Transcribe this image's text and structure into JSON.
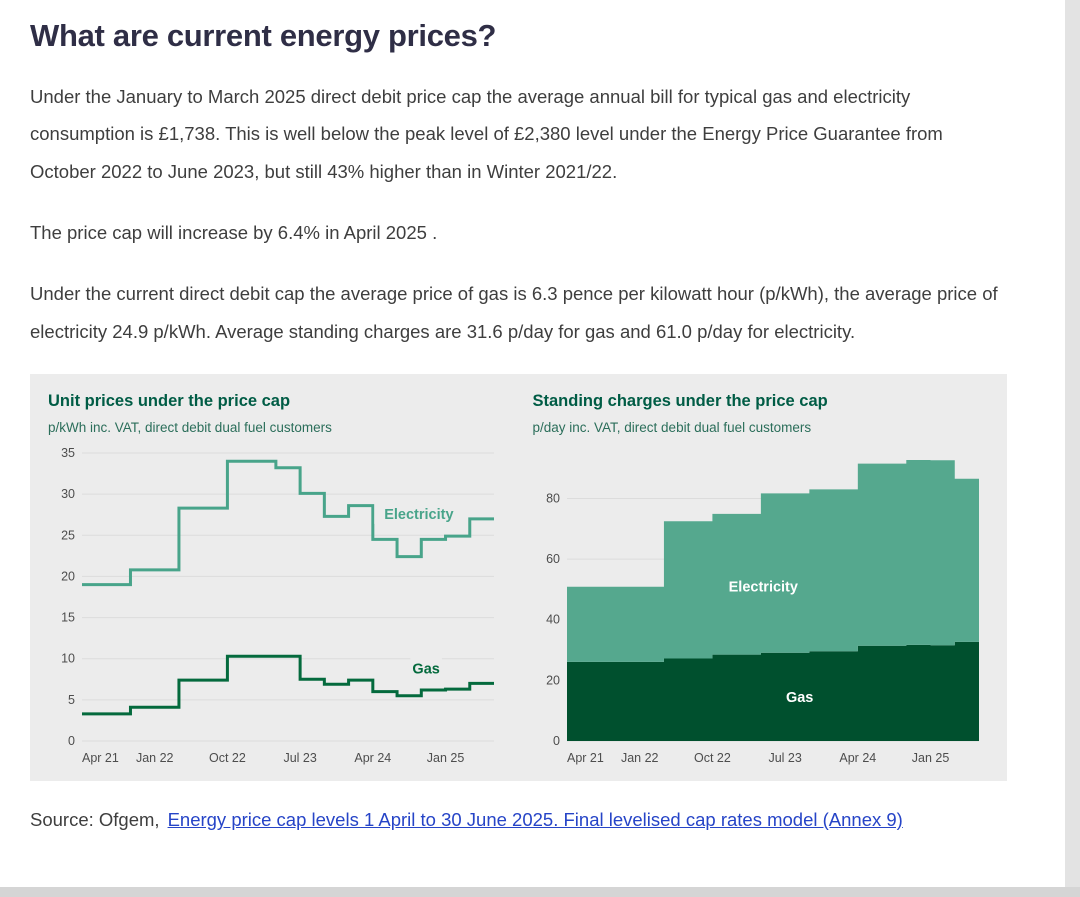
{
  "page": {
    "heading": "What are current energy prices?",
    "paragraphs": [
      "Under the January to March 2025 direct debit price cap the average annual bill for typical gas and electricity consumption is £1,738. This is well below the peak level of £2,380 level under the Energy Price Guarantee from October 2022 to June 2023, but still 43% higher than in Winter 2021/22.",
      "The price cap will increase by 6.4% in April 2025 .",
      "Under the current direct debit cap the average price of gas is 6.3 pence per kilowatt hour (p/kWh), the average price of electricity 24.9 p/kWh. Average standing charges are 31.6 p/day for gas and 61.0 p/day for electricity."
    ],
    "source": {
      "prefix": "Source: Ofgem,",
      "link_text": "Energy price cap levels 1 April to 30 June 2025. Final levelised cap rates model (Annex 9)"
    }
  },
  "colors": {
    "heading": "#2f2e46",
    "body_text": "#3e3e3e",
    "panel_bg": "#ececec",
    "chart_title_green": "#005c45",
    "chart_subtitle_green": "#2b6e5a",
    "electricity_line": "#48a48a",
    "gas_line": "#046a3d",
    "electricity_area": "#55a88e",
    "gas_area": "#00502e",
    "link_blue": "#2644c7",
    "tick_text": "#4d4d4d",
    "gridline": "#dcdcdc"
  },
  "chart_data": [
    {
      "type": "line-step",
      "title": "Unit prices under the price cap",
      "subtitle": "p/kWh inc. VAT, direct debit dual fuel customers",
      "unit": "p/kWh",
      "x": [
        "Apr 21",
        "Jul 21",
        "Oct 21",
        "Jan 22",
        "Apr 22",
        "Jul 22",
        "Oct 22",
        "Jan 23",
        "Apr 23",
        "Jul 23",
        "Oct 23",
        "Jan 24",
        "Apr 24",
        "Jul 24",
        "Oct 24",
        "Jan 25",
        "Apr 25"
      ],
      "x_ticks": [
        {
          "i": 0,
          "label": "Apr 21"
        },
        {
          "i": 3,
          "label": "Jan 22"
        },
        {
          "i": 6,
          "label": "Oct 22"
        },
        {
          "i": 9,
          "label": "Jul 23"
        },
        {
          "i": 12,
          "label": "Apr 24"
        },
        {
          "i": 15,
          "label": "Jan 25"
        }
      ],
      "ylim": [
        0,
        35
      ],
      "yticks": [
        0,
        5,
        10,
        15,
        20,
        25,
        30,
        35
      ],
      "grid": true,
      "legend": "inline-labels",
      "series": [
        {
          "name": "Electricity",
          "color": "#48a48a",
          "values": [
            19,
            19,
            20.8,
            20.8,
            28.3,
            28.3,
            34,
            34,
            33.2,
            30.1,
            27.3,
            28.6,
            24.5,
            22.4,
            24.5,
            24.9,
            27
          ]
        },
        {
          "name": "Gas",
          "color": "#046a3d",
          "values": [
            3.3,
            3.3,
            4.1,
            4.1,
            7.4,
            7.4,
            10.3,
            10.3,
            10.3,
            7.5,
            6.9,
            7.4,
            6,
            5.5,
            6.2,
            6.3,
            7
          ]
        }
      ],
      "annotations": [
        {
          "text": "Electricity",
          "x_index": 13.9,
          "y_value": 27.6,
          "color": "#48a48a",
          "bg": true
        },
        {
          "text": "Gas",
          "x_index": 14.2,
          "y_value": 8.8,
          "color": "#046a3d",
          "bg": true
        }
      ]
    },
    {
      "type": "stacked-area-step",
      "title": "Standing charges under the price cap",
      "subtitle": "p/day inc. VAT, direct debit dual fuel customers",
      "unit": "p/day",
      "x": [
        "Apr 21",
        "Jul 21",
        "Oct 21",
        "Jan 22",
        "Apr 22",
        "Jul 22",
        "Oct 22",
        "Jan 23",
        "Apr 23",
        "Jul 23",
        "Oct 23",
        "Jan 24",
        "Apr 24",
        "Jul 24",
        "Oct 24",
        "Jan 25",
        "Apr 25"
      ],
      "x_ticks": [
        {
          "i": 0,
          "label": "Apr 21"
        },
        {
          "i": 3,
          "label": "Jan 22"
        },
        {
          "i": 6,
          "label": "Oct 22"
        },
        {
          "i": 9,
          "label": "Jul 23"
        },
        {
          "i": 12,
          "label": "Apr 24"
        },
        {
          "i": 15,
          "label": "Jan 25"
        }
      ],
      "ylim": [
        0,
        95
      ],
      "yticks": [
        0,
        20,
        40,
        60,
        80
      ],
      "grid": true,
      "legend": "inline-labels",
      "series": [
        {
          "name": "Gas",
          "color": "#00502e",
          "values": [
            26.1,
            26.1,
            26.1,
            26.1,
            27.2,
            27.2,
            28.5,
            28.5,
            29.1,
            29.1,
            29.6,
            29.6,
            31.4,
            31.4,
            31.7,
            31.6,
            32.7
          ]
        },
        {
          "name": "Electricity",
          "color": "#55a88e",
          "values": [
            24.8,
            24.8,
            24.8,
            24.8,
            45.3,
            45.3,
            46.4,
            46.4,
            52.6,
            52.6,
            53.4,
            53.4,
            60.1,
            60.1,
            61,
            61,
            53.8
          ]
        }
      ],
      "annotations": [
        {
          "text": "Electricity",
          "x_index": 8.1,
          "y_value": 51,
          "color": "#ffffff",
          "bg": false
        },
        {
          "text": "Gas",
          "x_index": 9.6,
          "y_value": 14.5,
          "color": "#ffffff",
          "bg": false
        }
      ]
    }
  ]
}
